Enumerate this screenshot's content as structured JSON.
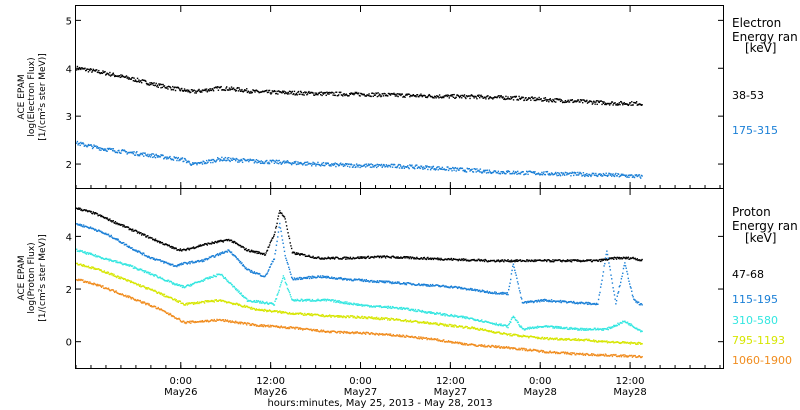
{
  "chart_data": [
    {
      "type": "scatter",
      "instrument": "ACE EPAM",
      "ylabel": "log(Electron Flux)",
      "yunits": "[1/(cm²s ster MeV)]",
      "ylim": [
        1.5,
        5.3
      ],
      "yticks": [
        "2",
        "3",
        "4",
        "5"
      ],
      "legend_title": [
        "Electron",
        "Energy ran",
        "[keV]"
      ],
      "grid": false,
      "series": [
        {
          "name": "38-53",
          "color": "#000000",
          "x": [
            0.0,
            0.15,
            0.3,
            0.45,
            0.6,
            0.65,
            0.8,
            0.9,
            1.0,
            1.2,
            1.4,
            1.6,
            1.8,
            2.0,
            2.2,
            2.4,
            2.6,
            2.8,
            3.0,
            3.15
          ],
          "y": [
            4.02,
            3.92,
            3.8,
            3.66,
            3.55,
            3.52,
            3.6,
            3.57,
            3.52,
            3.5,
            3.48,
            3.47,
            3.45,
            3.43,
            3.42,
            3.4,
            3.36,
            3.32,
            3.28,
            3.28
          ]
        },
        {
          "name": "175-315",
          "color": "#1a7fd6",
          "x": [
            0.0,
            0.15,
            0.3,
            0.45,
            0.6,
            0.65,
            0.8,
            1.0,
            1.2,
            1.4,
            1.6,
            1.8,
            2.0,
            2.2,
            2.4,
            2.6,
            2.8,
            3.0,
            3.15
          ],
          "y": [
            2.45,
            2.33,
            2.25,
            2.18,
            2.1,
            2.0,
            2.12,
            2.07,
            2.04,
            2.0,
            1.98,
            1.97,
            1.93,
            1.88,
            1.84,
            1.82,
            1.8,
            1.78,
            1.75
          ]
        }
      ]
    },
    {
      "type": "scatter",
      "instrument": "ACE EPAM",
      "ylabel": "log(Proton Flux)",
      "yunits": "[1/(cm²s ster MeV)]",
      "ylim": [
        -1.0,
        5.8
      ],
      "yticks": [
        "0",
        "2",
        "4"
      ],
      "legend_title": [
        "Proton",
        "Energy ran",
        "[keV]"
      ],
      "grid": false,
      "xticks": [
        {
          "value": 0.583,
          "time": "0:00",
          "date": "May26"
        },
        {
          "value": 1.083,
          "time": "12:00",
          "date": "May26"
        },
        {
          "value": 1.583,
          "time": "0:00",
          "date": "May27"
        },
        {
          "value": 2.083,
          "time": "12:00",
          "date": "May27"
        },
        {
          "value": 2.583,
          "time": "0:00",
          "date": "May28"
        },
        {
          "value": 3.083,
          "time": "12:00",
          "date": "May28"
        }
      ],
      "xlim": [
        0.0,
        3.6
      ],
      "xlabel": "hours:minutes, May 25, 2013 - May 28, 2013",
      "series": [
        {
          "name": "47-68",
          "color": "#000000",
          "x": [
            0.0,
            0.1,
            0.2,
            0.3,
            0.4,
            0.55,
            0.6,
            0.7,
            0.85,
            0.95,
            1.05,
            1.1,
            1.13,
            1.16,
            1.2,
            1.35,
            1.5,
            1.7,
            1.9,
            2.1,
            2.3,
            2.5,
            2.7,
            2.9,
            3.0,
            3.1,
            3.15
          ],
          "y": [
            5.1,
            4.9,
            4.6,
            4.3,
            4.0,
            3.55,
            3.5,
            3.7,
            3.9,
            3.5,
            3.35,
            4.1,
            5.0,
            4.7,
            3.4,
            3.2,
            3.2,
            3.25,
            3.2,
            3.15,
            3.1,
            3.1,
            3.1,
            3.1,
            3.2,
            3.2,
            3.1
          ]
        },
        {
          "name": "115-195",
          "color": "#1a7fd6",
          "x": [
            0.0,
            0.1,
            0.2,
            0.3,
            0.4,
            0.55,
            0.6,
            0.7,
            0.85,
            0.95,
            1.05,
            1.1,
            1.13,
            1.16,
            1.2,
            1.35,
            1.5,
            1.7,
            1.9,
            2.1,
            2.3,
            2.4,
            2.43,
            2.48,
            2.6,
            2.8,
            2.9,
            2.95,
            3.0,
            3.05,
            3.1,
            3.15
          ],
          "y": [
            4.5,
            4.3,
            4.0,
            3.6,
            3.25,
            2.9,
            3.0,
            3.1,
            3.5,
            2.75,
            2.5,
            3.2,
            4.5,
            3.3,
            2.4,
            2.5,
            2.4,
            2.3,
            2.2,
            2.1,
            1.9,
            1.85,
            3.0,
            1.5,
            1.6,
            1.5,
            1.45,
            3.5,
            1.5,
            3.0,
            1.6,
            1.4
          ]
        },
        {
          "name": "310-580",
          "color": "#33e6e0",
          "x": [
            0.0,
            0.15,
            0.3,
            0.45,
            0.55,
            0.6,
            0.8,
            0.95,
            1.05,
            1.1,
            1.15,
            1.2,
            1.4,
            1.6,
            1.8,
            2.0,
            2.2,
            2.4,
            2.43,
            2.48,
            2.6,
            2.8,
            2.95,
            3.05,
            3.15
          ],
          "y": [
            3.5,
            3.2,
            2.9,
            2.5,
            2.2,
            2.1,
            2.6,
            1.6,
            1.5,
            1.45,
            2.5,
            1.6,
            1.6,
            1.4,
            1.3,
            1.1,
            0.9,
            0.6,
            1.0,
            0.5,
            0.6,
            0.5,
            0.5,
            0.8,
            0.4
          ]
        },
        {
          "name": "795-1193",
          "color": "#d6e600",
          "x": [
            0.0,
            0.15,
            0.3,
            0.45,
            0.55,
            0.6,
            0.8,
            1.0,
            1.2,
            1.4,
            1.6,
            1.8,
            2.0,
            2.2,
            2.4,
            2.6,
            2.8,
            3.0,
            3.15
          ],
          "y": [
            3.0,
            2.7,
            2.3,
            1.9,
            1.6,
            1.45,
            1.6,
            1.25,
            1.1,
            1.0,
            0.95,
            0.85,
            0.7,
            0.55,
            0.3,
            0.15,
            0.1,
            0.0,
            -0.05
          ]
        },
        {
          "name": "1060-1900",
          "color": "#f08c1e",
          "x": [
            0.0,
            0.15,
            0.3,
            0.45,
            0.55,
            0.6,
            0.8,
            1.0,
            1.2,
            1.4,
            1.6,
            1.8,
            2.0,
            2.2,
            2.4,
            2.6,
            2.8,
            3.0,
            3.15
          ],
          "y": [
            2.4,
            2.1,
            1.7,
            1.3,
            0.95,
            0.75,
            0.85,
            0.65,
            0.55,
            0.4,
            0.35,
            0.25,
            0.1,
            -0.1,
            -0.2,
            -0.35,
            -0.45,
            -0.5,
            -0.55
          ]
        }
      ]
    }
  ]
}
